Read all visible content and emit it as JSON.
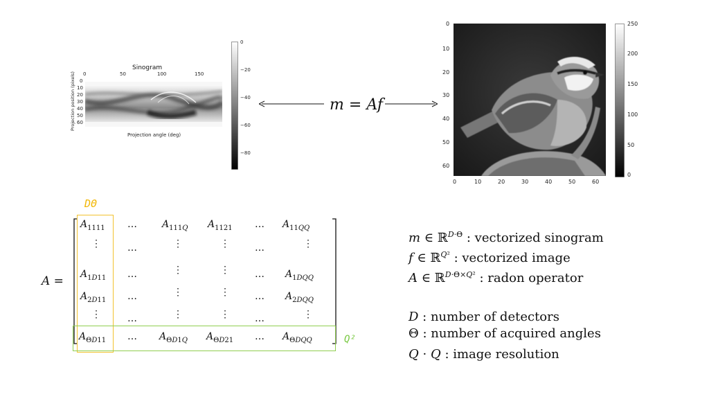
{
  "sinogram": {
    "title": "Sinogram",
    "xlabel": "Projection angle (deg)",
    "ylabel": "Projection position (pixels)",
    "xticks": [
      "0",
      "50",
      "100",
      "150"
    ],
    "yticks": [
      "0",
      "10",
      "20",
      "30",
      "40",
      "50",
      "60"
    ],
    "colorbar_ticks": [
      "0",
      "−20",
      "−40",
      "−60",
      "−80"
    ]
  },
  "bird_image": {
    "xticks": [
      "0",
      "10",
      "20",
      "30",
      "40",
      "50",
      "60"
    ],
    "yticks": [
      "0",
      "10",
      "20",
      "30",
      "40",
      "50",
      "60"
    ],
    "colorbar_ticks": [
      "250",
      "200",
      "150",
      "100",
      "50",
      "0"
    ]
  },
  "equation": {
    "lhs": "m",
    "equals": "=",
    "rhs": "Af"
  },
  "matrix": {
    "lhs": "A =",
    "column_label": "DΘ",
    "row_label": "Q²",
    "colors": {
      "column_box": "#f2c12e",
      "row_box": "#8fce4f",
      "column_label": "#f2b705",
      "row_label": "#7ac943"
    }
  },
  "definitions": {
    "m_label": ": vectorized sinogram",
    "f_label": ": vectorized image",
    "a_label": ": radon operator",
    "d_label": ": number of detectors",
    "theta_label": ": number of acquired angles",
    "q_label": ": image resolution"
  }
}
